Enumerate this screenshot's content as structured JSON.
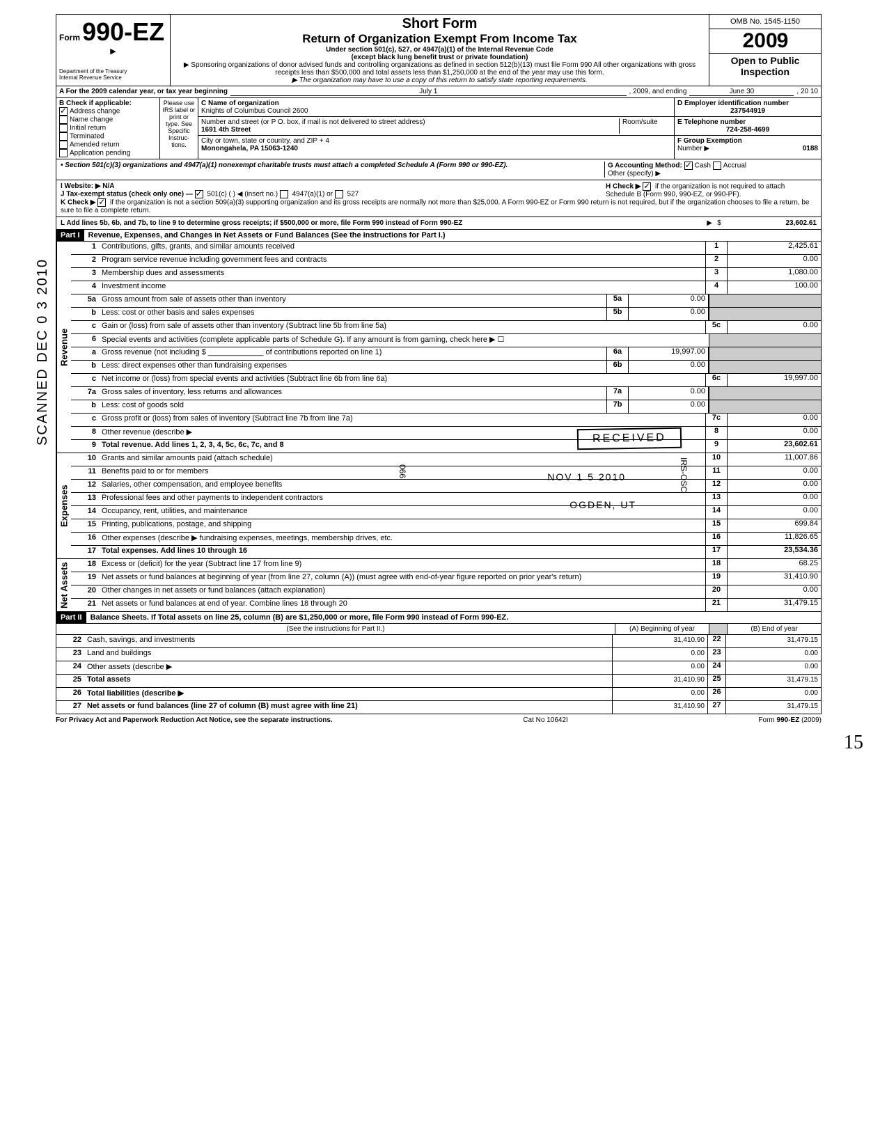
{
  "form": {
    "number": "990-EZ",
    "prefix": "Form",
    "title1": "Short Form",
    "title2": "Return of Organization Exempt From Income Tax",
    "subtitle1": "Under section 501(c), 527, or 4947(a)(1) of the Internal Revenue Code",
    "subtitle2": "(except black lung benefit trust or private foundation)",
    "note1": "▶ Sponsoring organizations of donor advised funds and controlling organizations as defined in section 512(b)(13) must file Form 990  All other organizations with gross receipts less than $500,000 and total assets less than $1,250,000 at the end of the year may use this form.",
    "note2": "▶ The organization may have to use a copy of this return to satisfy state reporting requirements.",
    "omb": "OMB No. 1545-1150",
    "year": "2009",
    "open_public": "Open to Public",
    "inspection": "Inspection",
    "dept1": "Department of the Treasury",
    "dept2": "Internal Revenue Service"
  },
  "scanned": "SCANNED DEC 0 3 2010",
  "header": {
    "a_text": "A  For the 2009 calendar year, or tax year beginning",
    "begin": "July 1",
    "mid": ", 2009, and ending",
    "end": "June 30",
    "end2": ", 20   10"
  },
  "section_b": {
    "b_label": "B  Check if applicable:",
    "items": [
      "Address change",
      "Name change",
      "Initial return",
      "Terminated",
      "Amended return",
      "Application pending"
    ],
    "checked_idx": 0,
    "please": "Please use IRS label or print or type. See Specific Instruc-tions.",
    "c_label": "C  Name of organization",
    "org_name": "Knights of Columbus Council 2600",
    "addr_label": "Number and street (or P O. box, if mail is not delivered to street address)",
    "room": "Room/suite",
    "street": "1691 4th Street",
    "city_label": "City or town, state or country, and ZIP + 4",
    "city": "Monongahela, PA  15063-1240",
    "d_label": "D Employer identification number",
    "ein": "237544919",
    "e_label": "E Telephone number",
    "phone": "724-258-4699",
    "f_label": "F Group Exemption",
    "f_num_label": "Number ▶",
    "f_num": "0188"
  },
  "section_notes": {
    "bullet": "• Section 501(c)(3) organizations and 4947(a)(1) nonexempt charitable trusts must attach a completed Schedule A (Form 990 or 990-EZ).",
    "g_label": "G  Accounting Method:",
    "g_cash": "Cash",
    "g_accrual": "Accrual",
    "g_other": "Other (specify) ▶",
    "h_label": "H  Check ▶",
    "h_text": "if the organization is not required to attach Schedule B (Form 990, 990-EZ, or 990-PF).",
    "i_label": "I   Website: ▶",
    "i_val": "N/A",
    "j_label": "J  Tax-exempt status (check only one) —",
    "j_501c": "501(c) (",
    "j_insert": ") ◀ (insert no.)",
    "j_4947": "4947(a)(1) or",
    "j_527": "527",
    "k_label": "K  Check ▶",
    "k_text": "if the organization is not a section 509(a)(3) supporting organization and its gross receipts are normally not more than $25,000.  A Form 990-EZ or Form 990 return is not required,  but if the organization chooses to file a return, be sure to file a complete return.",
    "l_label": "L  Add lines 5b, 6b, and 7b, to line 9 to determine gross receipts; if $500,000 or more, file Form 990 instead of Form 990-EZ",
    "l_arrow": "▶",
    "l_dollar": "$",
    "l_val": "23,602.61"
  },
  "part1": {
    "label": "Part I",
    "title": "Revenue, Expenses, and Changes in Net Assets or Fund Balances (See the instructions for Part I.)"
  },
  "revenue": {
    "side": "Revenue",
    "rows": [
      {
        "n": "1",
        "d": "Contributions, gifts, grants, and similar amounts received",
        "rn": "1",
        "rv": "2,425.61"
      },
      {
        "n": "2",
        "d": "Program service revenue including government fees and contracts",
        "rn": "2",
        "rv": "0.00"
      },
      {
        "n": "3",
        "d": "Membership dues and assessments",
        "rn": "3",
        "rv": "1,080.00"
      },
      {
        "n": "4",
        "d": "Investment income",
        "rn": "4",
        "rv": "100.00"
      },
      {
        "n": "5a",
        "d": "Gross amount from sale of assets other than inventory",
        "mn": "5a",
        "mv": "0.00"
      },
      {
        "n": "b",
        "d": "Less: cost or other basis and sales expenses",
        "mn": "5b",
        "mv": "0.00"
      },
      {
        "n": "c",
        "d": "Gain or (loss) from sale of assets other than inventory (Subtract line 5b from line 5a)",
        "rn": "5c",
        "rv": "0.00"
      },
      {
        "n": "6",
        "d": "Special events and activities (complete applicable parts of Schedule G). If any amount is from gaming, check here ▶ ☐"
      },
      {
        "n": "a",
        "d": "Gross revenue (not including $ _____________ of contributions reported on line 1)",
        "mn": "6a",
        "mv": "19,997.00"
      },
      {
        "n": "b",
        "d": "Less: direct expenses other than fundraising expenses",
        "mn": "6b",
        "mv": "0.00"
      },
      {
        "n": "c",
        "d": "Net income or (loss) from special events and activities (Subtract line 6b from line 6a)",
        "rn": "6c",
        "rv": "19,997.00"
      },
      {
        "n": "7a",
        "d": "Gross sales of inventory, less returns and allowances",
        "mn": "7a",
        "mv": "0.00"
      },
      {
        "n": "b",
        "d": "Less: cost of goods sold",
        "mn": "7b",
        "mv": "0.00"
      },
      {
        "n": "c",
        "d": "Gross profit or (loss) from sales of inventory (Subtract line 7b from line 7a)",
        "rn": "7c",
        "rv": "0.00"
      },
      {
        "n": "8",
        "d": "Other revenue (describe ▶",
        "rn": "8",
        "rv": "0.00"
      },
      {
        "n": "9",
        "d": "Total revenue. Add lines 1, 2, 3, 4, 5c, 6c, 7c, and 8",
        "rn": "9",
        "rv": "23,602.61",
        "bold": true
      }
    ]
  },
  "expenses": {
    "side": "Expenses",
    "rows": [
      {
        "n": "10",
        "d": "Grants and similar amounts paid (attach schedule)",
        "rn": "10",
        "rv": "11,007.86"
      },
      {
        "n": "11",
        "d": "Benefits paid to or for members",
        "rn": "11",
        "rv": "0.00"
      },
      {
        "n": "12",
        "d": "Salaries, other compensation, and employee benefits",
        "rn": "12",
        "rv": "0.00"
      },
      {
        "n": "13",
        "d": "Professional fees and other payments to independent contractors",
        "rn": "13",
        "rv": "0.00"
      },
      {
        "n": "14",
        "d": "Occupancy, rent, utilities, and maintenance",
        "rn": "14",
        "rv": "0.00"
      },
      {
        "n": "15",
        "d": "Printing, publications, postage, and shipping",
        "rn": "15",
        "rv": "699.84"
      },
      {
        "n": "16",
        "d": "Other expenses (describe ▶    fundraising expenses, meetings, membership drives, etc.",
        "rn": "16",
        "rv": "11,826.65"
      },
      {
        "n": "17",
        "d": "Total expenses. Add lines 10 through 16",
        "rn": "17",
        "rv": "23,534.36",
        "bold": true
      }
    ]
  },
  "netassets": {
    "side": "Net Assets",
    "rows": [
      {
        "n": "18",
        "d": "Excess or (deficit) for the year (Subtract line 17 from line 9)",
        "rn": "18",
        "rv": "68.25"
      },
      {
        "n": "19",
        "d": "Net assets or fund balances at beginning of year (from line 27, column (A)) (must agree with end-of-year figure reported on prior year's return)",
        "rn": "19",
        "rv": "31,410.90"
      },
      {
        "n": "20",
        "d": "Other changes in net assets or fund balances (attach explanation)",
        "rn": "20",
        "rv": "0.00"
      },
      {
        "n": "21",
        "d": "Net assets or fund balances at end of year. Combine lines 18 through 20",
        "rn": "21",
        "rv": "31,479.15"
      }
    ]
  },
  "part2": {
    "label": "Part II",
    "title": "Balance Sheets. If Total assets on line 25, column (B) are $1,250,000 or more, file Form 990 instead of Form 990-EZ.",
    "instr": "(See the instructions for Part II.)",
    "col_a": "(A) Beginning of year",
    "col_b": "(B) End of year",
    "rows": [
      {
        "n": "22",
        "d": "Cash, savings, and investments",
        "a": "31,410.90",
        "b": "31,479.15"
      },
      {
        "n": "23",
        "d": "Land and buildings",
        "a": "0.00",
        "b": "0.00"
      },
      {
        "n": "24",
        "d": "Other assets (describe ▶",
        "a": "0.00",
        "b": "0.00"
      },
      {
        "n": "25",
        "d": "Total assets",
        "a": "31,410.90",
        "b": "31,479.15",
        "bold": true
      },
      {
        "n": "26",
        "d": "Total liabilities (describe ▶",
        "a": "0.00",
        "b": "0.00",
        "bold": true
      },
      {
        "n": "27",
        "d": "Net assets or fund balances (line 27 of column (B) must agree with line 21)",
        "a": "31,410.90",
        "b": "31,479.15",
        "bold": true
      }
    ]
  },
  "stamps": {
    "received": "RECEIVED",
    "date": "NOV 1 5 2010",
    "ogden": "OGDEN, UT",
    "code": "066",
    "irs": "IRS-OSC"
  },
  "footer": {
    "left": "For Privacy Act and Paperwork Reduction Act Notice, see the separate instructions.",
    "mid": "Cat  No  10642I",
    "right": "Form 990-EZ (2009)"
  },
  "margin": "15"
}
